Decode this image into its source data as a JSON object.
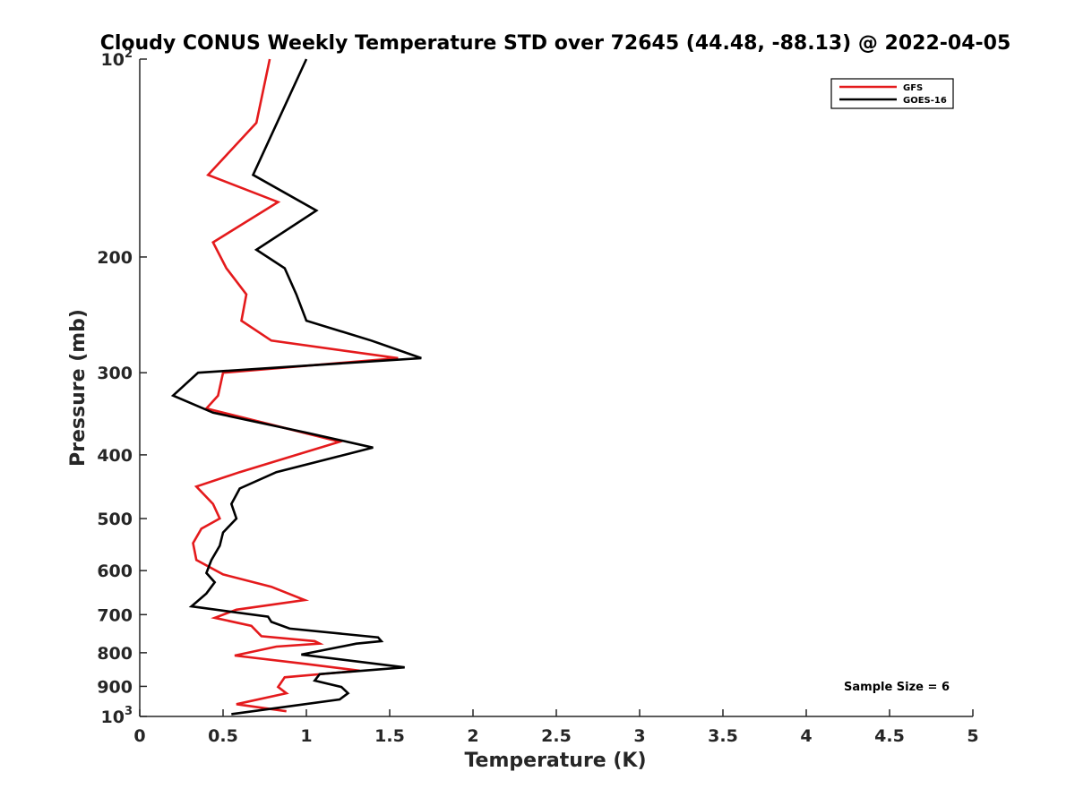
{
  "chart_data": {
    "type": "line",
    "title": "Cloudy CONUS Weekly Temperature STD over 72645 (44.48, -88.13) @ 2022-04-05",
    "xlabel": "Temperature (K)",
    "ylabel": "Pressure (mb)",
    "xlim": [
      0,
      5
    ],
    "ylim": [
      100,
      1000
    ],
    "y_scale": "log",
    "y_reversed": true,
    "grid": false,
    "legend_position": "top-right",
    "x_ticks": [
      {
        "value": 0,
        "label": "0"
      },
      {
        "value": 0.5,
        "label": "0.5"
      },
      {
        "value": 1,
        "label": "1"
      },
      {
        "value": 1.5,
        "label": "1.5"
      },
      {
        "value": 2,
        "label": "2"
      },
      {
        "value": 2.5,
        "label": "2.5"
      },
      {
        "value": 3,
        "label": "3"
      },
      {
        "value": 3.5,
        "label": "3.5"
      },
      {
        "value": 4,
        "label": "4"
      },
      {
        "value": 4.5,
        "label": "4.5"
      },
      {
        "value": 5,
        "label": "5"
      }
    ],
    "y_ticks": [
      {
        "value": 100,
        "label": "10",
        "sup": "2"
      },
      {
        "value": 200,
        "label": "200",
        "sup": ""
      },
      {
        "value": 300,
        "label": "300",
        "sup": ""
      },
      {
        "value": 400,
        "label": "400",
        "sup": ""
      },
      {
        "value": 500,
        "label": "500",
        "sup": ""
      },
      {
        "value": 600,
        "label": "600",
        "sup": ""
      },
      {
        "value": 700,
        "label": "700",
        "sup": ""
      },
      {
        "value": 800,
        "label": "800",
        "sup": ""
      },
      {
        "value": 900,
        "label": "900",
        "sup": ""
      },
      {
        "value": 1000,
        "label": "10",
        "sup": "3"
      }
    ],
    "series": [
      {
        "name": "GFS",
        "color": "#e41a1c",
        "points": [
          [
            0.78,
            100
          ],
          [
            0.7,
            125
          ],
          [
            0.41,
            150
          ],
          [
            0.83,
            165
          ],
          [
            0.44,
            190
          ],
          [
            0.52,
            208
          ],
          [
            0.64,
            228
          ],
          [
            0.61,
            250
          ],
          [
            0.79,
            268
          ],
          [
            1.55,
            285
          ],
          [
            0.5,
            300
          ],
          [
            0.47,
            325
          ],
          [
            0.4,
            340
          ],
          [
            1.2,
            382
          ],
          [
            0.6,
            425
          ],
          [
            0.34,
            447
          ],
          [
            0.44,
            475
          ],
          [
            0.48,
            500
          ],
          [
            0.37,
            518
          ],
          [
            0.32,
            545
          ],
          [
            0.34,
            578
          ],
          [
            0.5,
            608
          ],
          [
            0.79,
            635
          ],
          [
            0.99,
            665
          ],
          [
            0.58,
            688
          ],
          [
            0.45,
            708
          ],
          [
            0.67,
            728
          ],
          [
            0.73,
            755
          ],
          [
            1.05,
            768
          ],
          [
            1.08,
            775
          ],
          [
            0.82,
            783
          ],
          [
            0.57,
            808
          ],
          [
            1.0,
            832
          ],
          [
            1.32,
            852
          ],
          [
            0.87,
            872
          ],
          [
            0.83,
            902
          ],
          [
            0.88,
            922
          ],
          [
            0.58,
            958
          ],
          [
            0.88,
            982
          ]
        ]
      },
      {
        "name": "GOES-16",
        "color": "#000000",
        "points": [
          [
            1.0,
            100
          ],
          [
            0.68,
            150
          ],
          [
            1.06,
            170
          ],
          [
            0.7,
            195
          ],
          [
            0.87,
            208
          ],
          [
            0.94,
            228
          ],
          [
            1.0,
            250
          ],
          [
            1.39,
            268
          ],
          [
            1.69,
            285
          ],
          [
            0.35,
            300
          ],
          [
            0.2,
            325
          ],
          [
            0.44,
            345
          ],
          [
            1.0,
            370
          ],
          [
            1.4,
            390
          ],
          [
            0.82,
            425
          ],
          [
            0.6,
            450
          ],
          [
            0.55,
            475
          ],
          [
            0.58,
            500
          ],
          [
            0.5,
            525
          ],
          [
            0.48,
            550
          ],
          [
            0.43,
            578
          ],
          [
            0.4,
            605
          ],
          [
            0.45,
            625
          ],
          [
            0.4,
            650
          ],
          [
            0.31,
            680
          ],
          [
            0.77,
            705
          ],
          [
            0.79,
            718
          ],
          [
            0.9,
            735
          ],
          [
            1.43,
            758
          ],
          [
            1.45,
            768
          ],
          [
            1.3,
            775
          ],
          [
            0.97,
            805
          ],
          [
            1.59,
            842
          ],
          [
            1.08,
            862
          ],
          [
            1.05,
            882
          ],
          [
            1.21,
            902
          ],
          [
            1.25,
            922
          ],
          [
            1.2,
            942
          ],
          [
            0.55,
            992
          ]
        ]
      }
    ],
    "annotations": [
      {
        "text": "Sample Size = 6",
        "position": "bottom-right"
      }
    ]
  }
}
